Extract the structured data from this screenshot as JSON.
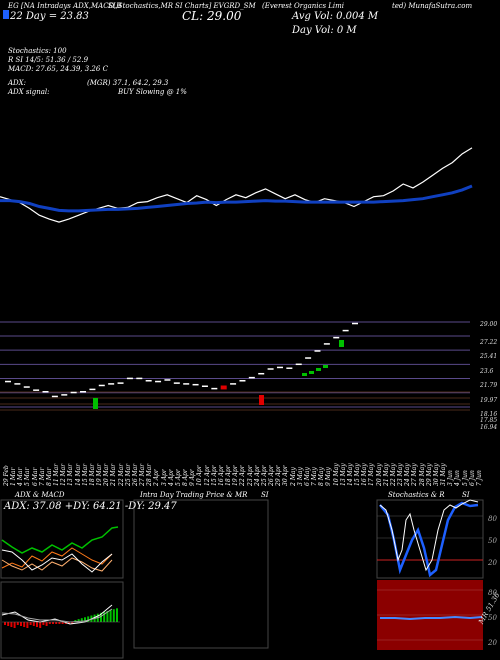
{
  "header": {
    "line1": "EG  [NA Intradays ADX,MACD,B",
    "line1b": "SI,Stochastics,MR",
    "line1c": "SI Charts] EVGRD_SM",
    "line1d": "(Everest Organics Limi",
    "line1e": "ted) MunafaSutra.com",
    "date": "22 Day = 23.83",
    "close": "CL: 29.00",
    "avg_vol": "Avg Vol: 0.004  M",
    "day_vol": "Day Vol: 0   M"
  },
  "indicators": {
    "stochastics": "Stochastics: 100",
    "rsi": "R          SI 14/5: 51.36  / 52.9",
    "macd": "MACD: 27.65,  24.39, 3.26   C",
    "adx": "ADX:",
    "mrgi": "(MGR) 37.1,  64.2,  29.3",
    "adx_signal": "ADX  signal:",
    "signal": "BUY Slowing @ 1%"
  },
  "price_axis": [
    "29.00",
    "27.22",
    "25.41",
    "23.6",
    "21.79",
    "19.97",
    "18.16",
    "17.85",
    "16.94"
  ],
  "date_labels": [
    "29 Feb",
    "1 Mar",
    "4 Mar",
    "5 Mar",
    "6 Mar",
    "7 Mar",
    "8 Mar",
    "11 Mar",
    "12 Mar",
    "13 Mar",
    "14 Mar",
    "15 Mar",
    "18 Mar",
    "19 Mar",
    "20 Mar",
    "21 Mar",
    "22 Mar",
    "25 Mar",
    "26 Mar",
    "27 Mar",
    "28 Mar",
    "2 Apr",
    "3 Apr",
    "4 Apr",
    "5 Apr",
    "8 Apr",
    "9 Apr",
    "10 Apr",
    "12 Apr",
    "15 Apr",
    "16 Apr",
    "18 Apr",
    "19 Apr",
    "22 Apr",
    "23 Apr",
    "24 Apr",
    "25 Apr",
    "26 Apr",
    "29 Apr",
    "30 Apr",
    "2 May",
    "3 May",
    "6 May",
    "7 May",
    "8 May",
    "9 May",
    "10 May",
    "13 May",
    "14 May",
    "15 May",
    "16 May",
    "17 May",
    "20 May",
    "21 May",
    "22 May",
    "23 May",
    "24 May",
    "27 May",
    "28 May",
    "29 May",
    "30 May",
    "31 May",
    "3 Jun",
    "4 Jun",
    "5 Jun",
    "6 Jun",
    "7 Jun",
    "10 Jun",
    "11 Jun",
    "12 Jun",
    "13 Jun",
    "14 Jun",
    "18 Jun",
    "19 Jun",
    "20 Jun",
    "21 Jun",
    "24 Jun",
    "25 Jun",
    "26 Jun"
  ],
  "panels": {
    "adx_title": "ADX  & MACD",
    "adx_values": "ADX: 37.08  +DY: 64.21 -DY: 29.47",
    "mrsi_title": "Intra  Day Trading Price  & MR",
    "mrsi_title2": "SI",
    "stoch_title": "Stochastics & R",
    "stoch_title2": "SI",
    "stoch_axis": [
      "80",
      "50",
      "20"
    ],
    "rsi_axis": [
      "80",
      "50",
      "20"
    ],
    "rsi_label": "MR 51.36"
  },
  "colors": {
    "ma": "#1040c0",
    "line": "#ffffff",
    "up": "#00c000",
    "down": "#e00000",
    "panel_red": "#8b0000",
    "stoch_blue": "#1e60ff"
  },
  "chart_data": {
    "type": "line",
    "title": "EVGRD_SM",
    "ylim": [
      16.5,
      30.0
    ],
    "series": [
      {
        "name": "Close",
        "values": [
          21.5,
          21.2,
          20.9,
          20.3,
          19.6,
          19.2,
          18.9,
          19.2,
          19.6,
          20.0,
          20.3,
          20.6,
          20.3,
          20.4,
          20.9,
          21.0,
          21.4,
          21.7,
          21.3,
          20.9,
          21.6,
          21.2,
          20.6,
          21.2,
          21.7,
          21.4,
          21.9,
          22.3,
          21.8,
          21.3,
          21.7,
          21.2,
          20.9,
          21.3,
          21.1,
          20.9,
          20.5,
          21.0,
          21.5,
          21.6,
          22.1,
          22.8,
          22.4,
          23.0,
          23.7,
          24.4,
          25.0,
          25.9,
          26.5
        ]
      },
      {
        "name": "MA",
        "values": [
          21.1,
          21.1,
          21.0,
          20.8,
          20.5,
          20.3,
          20.1,
          20.05,
          20.05,
          20.1,
          20.15,
          20.2,
          20.2,
          20.25,
          20.3,
          20.4,
          20.5,
          20.6,
          20.7,
          20.8,
          20.85,
          20.95,
          20.9,
          20.95,
          20.95,
          21.0,
          21.05,
          21.1,
          21.05,
          21.05,
          21.0,
          20.95,
          20.95,
          20.95,
          20.95,
          20.95,
          20.95,
          20.95,
          20.95,
          21.0,
          21.05,
          21.1,
          21.2,
          21.3,
          21.5,
          21.7,
          21.9,
          22.2,
          22.6
        ]
      }
    ],
    "candles": {
      "open": [
        21.5,
        21.2,
        20.8,
        20.4,
        20.2,
        19.6,
        19.8,
        20.1,
        20.2,
        20.5,
        21.0,
        21.2,
        21.3,
        21.9,
        21.9,
        21.6,
        21.5,
        21.7,
        21.3,
        21.2,
        21.1,
        20.9,
        20.6,
        20.9,
        21.2,
        21.6,
        22.0,
        22.5,
        23.1,
        23.3,
        23.2,
        23.7,
        24.5,
        25.4,
        26.3,
        27.1,
        28.0,
        28.9
      ],
      "close": [
        21.5,
        21.2,
        20.8,
        20.4,
        20.2,
        19.6,
        19.8,
        20.1,
        20.2,
        20.5,
        21.0,
        21.2,
        21.3,
        21.9,
        21.9,
        21.6,
        21.5,
        21.7,
        21.3,
        21.2,
        21.1,
        20.9,
        20.6,
        20.4,
        21.2,
        21.6,
        22.0,
        22.5,
        23.1,
        23.3,
        23.2,
        23.7,
        24.5,
        25.4,
        26.3,
        27.1,
        28.0,
        28.9
      ]
    }
  }
}
